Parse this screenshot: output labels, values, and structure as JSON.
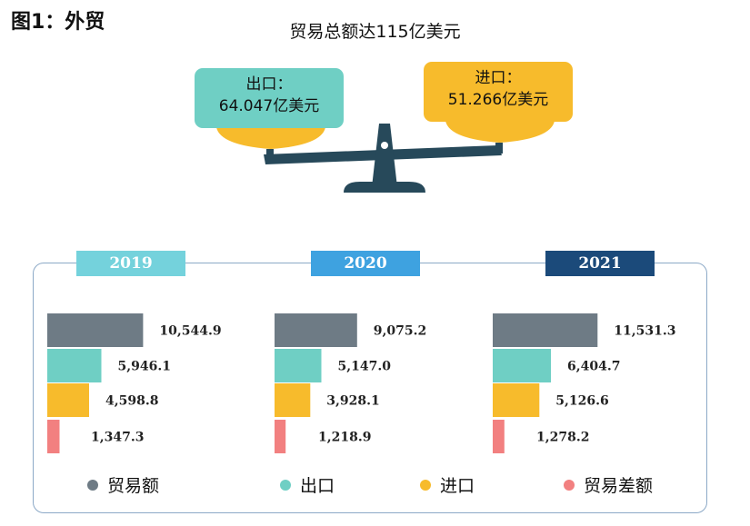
{
  "figure_label": "图1：外贸",
  "top_title": "贸易总额达115亿美元",
  "export_box": {
    "label": "出口：",
    "value": "64.047亿美元"
  },
  "import_box": {
    "label": "进口：",
    "value": "51.266亿美元"
  },
  "colors": {
    "trade_total": "#6e7b85",
    "export": "#6fcfc4",
    "import": "#f7bb2c",
    "balance": "#f28080",
    "tab_2019": "#74d2dc",
    "tab_2020": "#3ea2e0",
    "tab_2021": "#1b4a7a",
    "frame": "#8ca9c7",
    "scale_dark": "#27495a",
    "pan": "#f7bb2c"
  },
  "chart_data": {
    "type": "bar",
    "orientation": "horizontal",
    "groups": [
      "2019",
      "2020",
      "2021"
    ],
    "series": [
      {
        "name": "贸易额",
        "values": [
          10544.9,
          9075.2,
          11531.3
        ],
        "labels": [
          "10,544.9",
          "9,075.2",
          "11,531.3"
        ]
      },
      {
        "name": "出口",
        "values": [
          5946.1,
          5147.0,
          6404.7
        ],
        "labels": [
          "5,946.1",
          "5,147.0",
          "6,404.7"
        ]
      },
      {
        "name": "进口",
        "values": [
          4598.8,
          3928.1,
          5126.6
        ],
        "labels": [
          "4,598.8",
          "3,928.1",
          "5,126.6"
        ]
      },
      {
        "name": "贸易差额",
        "values": [
          1347.3,
          1218.9,
          1278.2
        ],
        "labels": [
          "1,347.3",
          "1,218.9",
          "1,278.2"
        ]
      }
    ],
    "legend": [
      "贸易额",
      "出口",
      "进口",
      "贸易差额"
    ],
    "legend_position": "bottom"
  }
}
